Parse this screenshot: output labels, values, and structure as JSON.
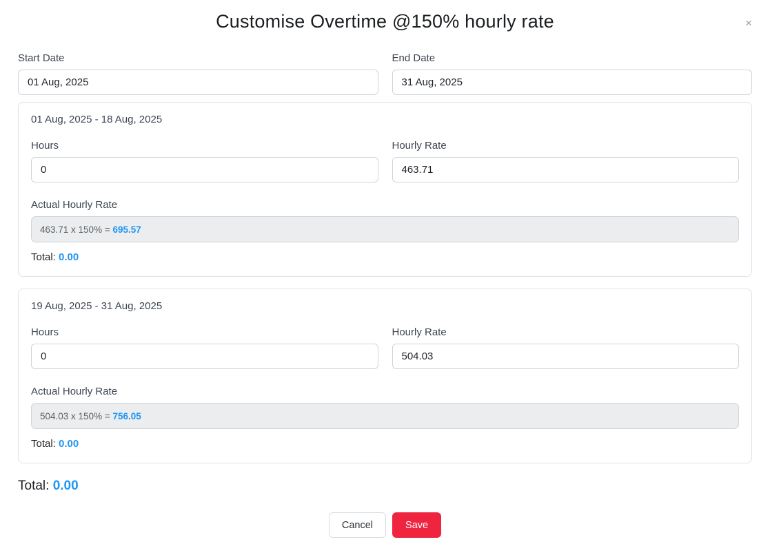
{
  "modal": {
    "title": "Customise Overtime @150% hourly rate",
    "close_glyph": "×"
  },
  "date_range": {
    "start": {
      "label": "Start Date",
      "value": "01 Aug, 2025"
    },
    "end": {
      "label": "End Date",
      "value": "31 Aug, 2025"
    }
  },
  "sections": [
    {
      "period": "01 Aug, 2025 - 18 Aug, 2025",
      "hours_label": "Hours",
      "hours_value": "0",
      "rate_label": "Hourly Rate",
      "rate_value": "463.71",
      "actual_rate_label": "Actual Hourly Rate",
      "actual_rate_formula": "463.71 x 150% = ",
      "actual_rate_result": "695.57",
      "total_label": "Total: ",
      "total_value": "0.00"
    },
    {
      "period": "19 Aug, 2025 - 31 Aug, 2025",
      "hours_label": "Hours",
      "hours_value": "0",
      "rate_label": "Hourly Rate",
      "rate_value": "504.03",
      "actual_rate_label": "Actual Hourly Rate",
      "actual_rate_formula": "504.03 x 150% = ",
      "actual_rate_result": "756.05",
      "total_label": "Total: ",
      "total_value": "0.00"
    }
  ],
  "grand_total": {
    "label": "Total: ",
    "value": "0.00"
  },
  "footer": {
    "cancel_label": "Cancel",
    "save_label": "Save"
  },
  "colors": {
    "accent_blue": "#2196f3",
    "save_red": "#ef2540",
    "panel_border": "#dee2e6",
    "readonly_bg": "#ebedef"
  }
}
